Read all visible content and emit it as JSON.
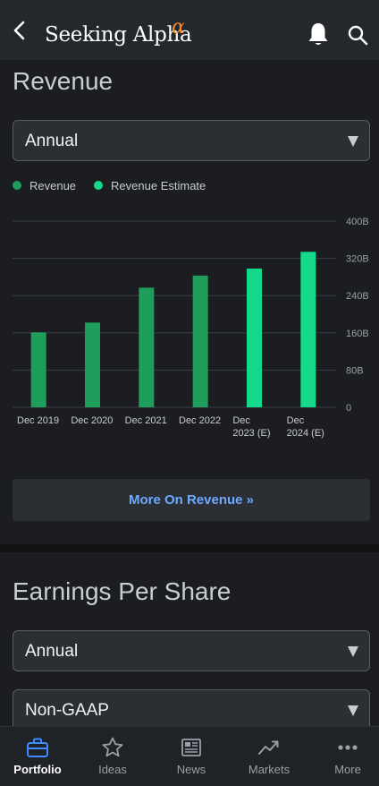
{
  "header": {
    "brand": "Seeking Alpha",
    "alpha_symbol": "α"
  },
  "revenue": {
    "title": "Revenue",
    "period_select": "Annual",
    "legend": [
      {
        "label": "Revenue",
        "color": "#1e9e5a"
      },
      {
        "label": "Revenue Estimate",
        "color": "#14d98a"
      }
    ],
    "more_button": "More On Revenue »"
  },
  "chart_data": {
    "type": "bar",
    "categories": [
      [
        "Dec 2019"
      ],
      [
        "Dec 2020"
      ],
      [
        "Dec 2021"
      ],
      [
        "Dec 2022"
      ],
      [
        "Dec",
        "2023 (E)"
      ],
      [
        "Dec",
        "2024 (E)"
      ]
    ],
    "series": [
      {
        "name": "Revenue",
        "values": [
          161,
          182,
          257,
          283,
          null,
          null
        ],
        "color": "#1e9e5a"
      },
      {
        "name": "Revenue Estimate",
        "values": [
          null,
          null,
          null,
          null,
          298,
          334
        ],
        "color": "#14d98a"
      }
    ],
    "yticks": [
      "400B",
      "320B",
      "240B",
      "160B",
      "80B",
      "0"
    ],
    "ytick_values": [
      400,
      320,
      240,
      160,
      80,
      0
    ],
    "ylim": [
      0,
      400
    ],
    "grid": true,
    "legend_position": "top-left"
  },
  "eps": {
    "title": "Earnings Per Share",
    "period_select": "Annual",
    "accounting_select": "Non-GAAP"
  },
  "bottom_nav": [
    {
      "label": "Portfolio",
      "icon": "briefcase-icon",
      "active": true
    },
    {
      "label": "Ideas",
      "icon": "star-icon",
      "active": false
    },
    {
      "label": "News",
      "icon": "newspaper-icon",
      "active": false
    },
    {
      "label": "Markets",
      "icon": "trend-icon",
      "active": false
    },
    {
      "label": "More",
      "icon": "more-dots-icon",
      "active": false
    }
  ]
}
